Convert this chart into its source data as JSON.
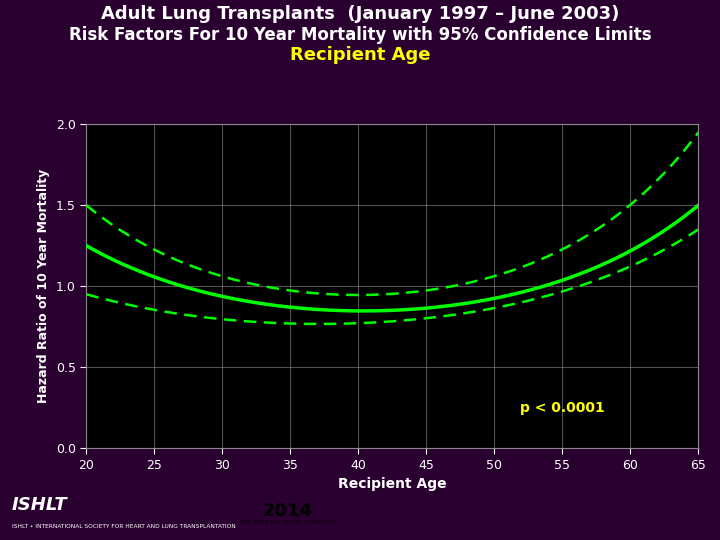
{
  "title_line1": "Adult Lung Transplants",
  "title_line1_suffix": " (January 1997 – June 2003)",
  "title_line2": "Risk Factors For 10 Year Mortality with 95% Confidence Limits",
  "title_line3": "Recipient Age",
  "xlabel": "Recipient Age",
  "ylabel": "Hazard Ratio of 10 Year Mortality",
  "xlim": [
    20,
    65
  ],
  "ylim": [
    0.0,
    2.0
  ],
  "xticks": [
    20,
    25,
    30,
    35,
    40,
    45,
    50,
    55,
    60,
    65
  ],
  "yticks": [
    0.0,
    0.5,
    1.0,
    1.5,
    2.0
  ],
  "bg_color": "#2a0030",
  "plot_bg_color": "#000000",
  "line_color": "#00ff00",
  "ci_color": "#00ff00",
  "title_color": "#ffffff",
  "ylabel_color": "#ffffff",
  "tick_color": "#ffffff",
  "grid_color": "#888888",
  "pvalue_text": "p < 0.0001",
  "pvalue_color": "#ffff00",
  "pvalue_x": 55,
  "pvalue_y": 0.25,
  "footer_bg": "#cc0000",
  "footer_year_bg": "#ffffff",
  "footer_year": "2014",
  "footer_cite": "JHLT. 2014 Oct; 33(10): 1009-1024",
  "footer_org": "ISHLT • INTERNATIONAL SOCIETY FOR HEART AND LUNG TRANSPLANTATION"
}
